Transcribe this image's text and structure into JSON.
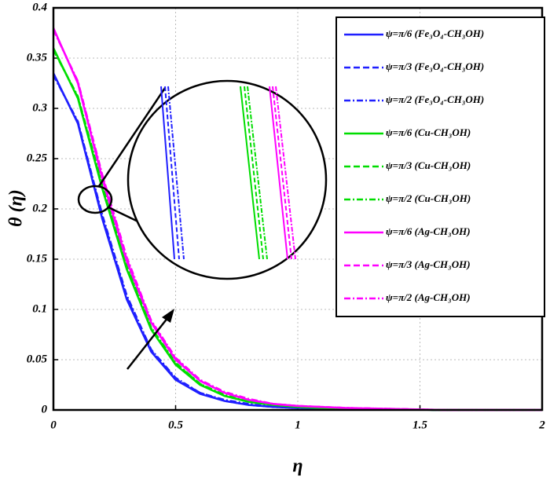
{
  "chart_data": {
    "type": "line",
    "x_label": "η",
    "y_label": "θ (η)",
    "x": [
      0,
      0.1,
      0.2,
      0.3,
      0.4,
      0.5,
      0.6,
      0.7,
      0.8,
      0.9,
      1.0,
      1.2,
      1.4,
      1.6,
      1.8,
      2.0
    ],
    "series": [
      {
        "name": "ψ=π/6 (Fe₃O₄-CH₃OH)",
        "color": "#1f1fff",
        "dash": "solid",
        "values": [
          0.335,
          0.285,
          0.19,
          0.11,
          0.058,
          0.03,
          0.016,
          0.009,
          0.005,
          0.003,
          0.002,
          0.001,
          0.0005,
          0,
          0,
          0
        ]
      },
      {
        "name": "ψ=π/3 (Fe₃O₄-CH₃OH)",
        "color": "#1f1fff",
        "dash": "dashed",
        "values": [
          0.334,
          0.286,
          0.192,
          0.112,
          0.059,
          0.031,
          0.017,
          0.009,
          0.005,
          0.003,
          0.002,
          0.001,
          0.0005,
          0,
          0,
          0
        ]
      },
      {
        "name": "ψ=π/2 (Fe₃O₄-CH₃OH)",
        "color": "#1f1fff",
        "dash": "dashdot",
        "values": [
          0.333,
          0.287,
          0.194,
          0.114,
          0.06,
          0.032,
          0.017,
          0.01,
          0.006,
          0.003,
          0.002,
          0.001,
          0.0005,
          0,
          0,
          0
        ]
      },
      {
        "name": "ψ=π/6 (Cu-CH₃OH)",
        "color": "#00dd00",
        "dash": "solid",
        "values": [
          0.36,
          0.31,
          0.22,
          0.14,
          0.08,
          0.045,
          0.025,
          0.014,
          0.008,
          0.005,
          0.003,
          0.001,
          0.0005,
          0,
          0,
          0
        ]
      },
      {
        "name": "ψ=π/3 (Cu-CH₃OH)",
        "color": "#00dd00",
        "dash": "dashed",
        "values": [
          0.359,
          0.311,
          0.222,
          0.142,
          0.081,
          0.046,
          0.026,
          0.014,
          0.008,
          0.005,
          0.003,
          0.001,
          0.0005,
          0,
          0,
          0
        ]
      },
      {
        "name": "ψ=π/2 (Cu-CH₃OH)",
        "color": "#00dd00",
        "dash": "dashdot",
        "values": [
          0.358,
          0.312,
          0.224,
          0.144,
          0.082,
          0.047,
          0.026,
          0.015,
          0.009,
          0.005,
          0.003,
          0.001,
          0.0005,
          0,
          0,
          0
        ]
      },
      {
        "name": "ψ=π/6 (Ag-CH₃OH)",
        "color": "#ff00ff",
        "dash": "solid",
        "values": [
          0.38,
          0.325,
          0.23,
          0.148,
          0.087,
          0.05,
          0.029,
          0.017,
          0.01,
          0.006,
          0.004,
          0.002,
          0.001,
          0,
          0,
          0
        ]
      },
      {
        "name": "ψ=π/3 (Ag-CH₃OH)",
        "color": "#ff00ff",
        "dash": "dashed",
        "values": [
          0.379,
          0.326,
          0.232,
          0.15,
          0.088,
          0.051,
          0.029,
          0.017,
          0.01,
          0.006,
          0.004,
          0.002,
          0.001,
          0,
          0,
          0
        ]
      },
      {
        "name": "ψ=π/2 (Ag-CH₃OH)",
        "color": "#ff00ff",
        "dash": "dashdot",
        "values": [
          0.378,
          0.327,
          0.234,
          0.152,
          0.089,
          0.052,
          0.03,
          0.018,
          0.011,
          0.006,
          0.004,
          0.002,
          0.001,
          0,
          0,
          0
        ]
      }
    ],
    "xlim": [
      0,
      2
    ],
    "xticks": [
      0,
      0.5,
      1,
      1.5,
      2
    ],
    "ylim": [
      0,
      0.4
    ],
    "yticks": [
      0,
      0.05,
      0.1,
      0.15,
      0.2,
      0.25,
      0.3,
      0.35,
      0.4
    ],
    "grid": true,
    "legend": "upper right"
  }
}
